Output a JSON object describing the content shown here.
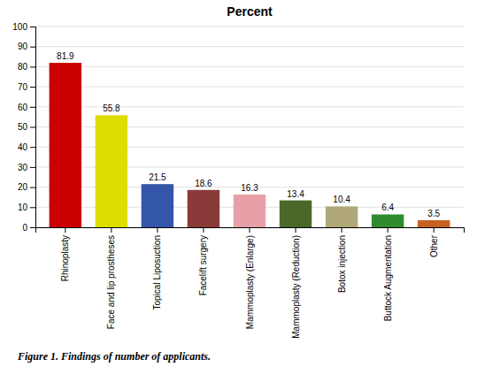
{
  "chart_data": {
    "type": "bar",
    "title": "Percent",
    "categories": [
      "Rhinoplasty",
      "Face and lip prostheses",
      "Topical Liposuction",
      "Facelift surgery",
      "Mammoplasty (Enlarge)",
      "Mammoplasty (Reduction)",
      "Botox injection",
      "Buttock Augmentation",
      "Other"
    ],
    "values": [
      81.9,
      55.8,
      21.5,
      18.6,
      16.3,
      13.4,
      10.4,
      6.4,
      3.5
    ],
    "colors": [
      "#cc0000",
      "#dddd00",
      "#3355aa",
      "#8b3a3a",
      "#e8a0a8",
      "#4a6929",
      "#b0a878",
      "#2e8b2e",
      "#c86020"
    ],
    "ylim": [
      0,
      100
    ],
    "yticks": [
      0,
      10,
      20,
      30,
      40,
      50,
      60,
      70,
      80,
      90,
      100
    ],
    "grid": true,
    "data_labels": true,
    "caption": "Figure 1. Findings of number of applicants."
  }
}
